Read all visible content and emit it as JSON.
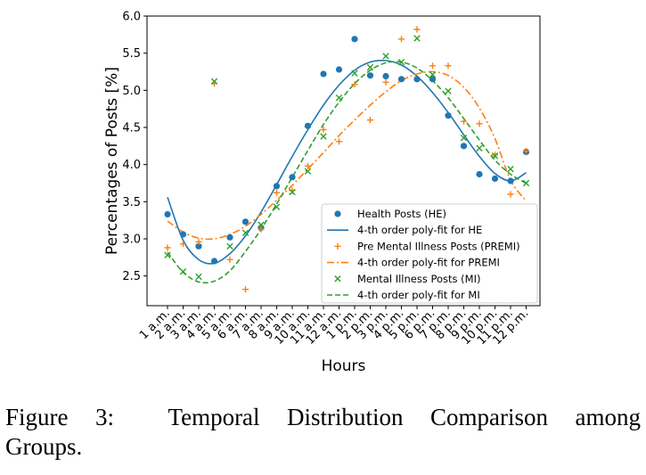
{
  "chart_data": {
    "type": "scatter",
    "xlabel": "Hours",
    "ylabel": "Percentages of Posts [%]",
    "categories": [
      "1 a.m.",
      "2 a.m.",
      "3 a.m.",
      "4 a.m.",
      "5 a.m.",
      "6 a.m.",
      "7 a.m.",
      "8 a.m.",
      "9 a.m.",
      "10 a.m.",
      "11 a.m.",
      "12 a.m.",
      "1 p.m.",
      "2 p.m.",
      "3 p.m.",
      "4 p.m.",
      "5 p.m.",
      "6 p.m.",
      "7 p.m.",
      "8 p.m.",
      "9 p.m.",
      "10 p.m.",
      "11 p.m.",
      "12 p.m."
    ],
    "yticks": [
      "2.5",
      "3.0",
      "3.5",
      "4.0",
      "4.5",
      "5.0",
      "5.5",
      "6.0"
    ],
    "ylim": [
      2.1,
      6.0
    ],
    "grid": false,
    "legend_position": "lower-right",
    "series": [
      {
        "name": "Health Posts (HE)",
        "kind": "scatter",
        "marker": "circle",
        "color": "#1f77b4",
        "values": [
          3.33,
          3.06,
          2.9,
          2.7,
          3.02,
          3.23,
          3.15,
          3.71,
          3.83,
          4.52,
          5.22,
          5.28,
          5.69,
          5.2,
          5.19,
          5.15,
          5.15,
          5.15,
          4.66,
          4.25,
          3.87,
          3.81,
          3.78,
          4.17
        ]
      },
      {
        "name": "4-th order poly-fit for HE",
        "kind": "line",
        "dash": "solid",
        "color": "#1f77b4",
        "values": [
          3.56,
          2.98,
          2.72,
          2.67,
          2.8,
          3.04,
          3.36,
          3.73,
          4.11,
          4.47,
          4.8,
          5.07,
          5.27,
          5.38,
          5.4,
          5.34,
          5.19,
          4.97,
          4.7,
          4.4,
          4.11,
          3.88,
          3.78,
          3.89
        ]
      },
      {
        "name": "Pre Mental Illness Posts (PREMI)",
        "kind": "scatter",
        "marker": "plus",
        "color": "#ff7f0e",
        "values": [
          2.88,
          2.93,
          2.96,
          5.09,
          2.72,
          2.32,
          3.13,
          3.62,
          3.65,
          3.98,
          4.47,
          4.31,
          5.08,
          4.6,
          5.11,
          5.69,
          5.82,
          5.33,
          5.33,
          4.58,
          4.55,
          4.13,
          3.6,
          4.18
        ]
      },
      {
        "name": "4-th order poly-fit for PREMI",
        "kind": "line",
        "dash": "dashdot",
        "color": "#ff7f0e",
        "values": [
          3.24,
          3.09,
          3.01,
          3.0,
          3.06,
          3.17,
          3.33,
          3.52,
          3.72,
          3.94,
          4.16,
          4.39,
          4.6,
          4.8,
          4.98,
          5.13,
          5.22,
          5.25,
          5.2,
          5.04,
          4.76,
          4.35,
          3.79,
          3.51
        ]
      },
      {
        "name": "Mental Illness Posts (MI)",
        "kind": "scatter",
        "marker": "x",
        "color": "#2ca02c",
        "values": [
          2.78,
          2.56,
          2.49,
          5.12,
          2.9,
          3.08,
          3.19,
          3.43,
          3.63,
          3.91,
          4.38,
          4.9,
          5.23,
          5.31,
          5.46,
          5.38,
          5.7,
          5.21,
          4.99,
          4.36,
          4.22,
          4.12,
          3.94,
          3.75
        ]
      },
      {
        "name": "4-th order poly-fit for MI",
        "kind": "line",
        "dash": "dashed",
        "color": "#2ca02c",
        "values": [
          2.82,
          2.55,
          2.42,
          2.43,
          2.57,
          2.83,
          3.13,
          3.47,
          3.83,
          4.19,
          4.54,
          4.84,
          5.09,
          5.27,
          5.37,
          5.38,
          5.3,
          5.13,
          4.9,
          4.62,
          4.33,
          4.06,
          3.87,
          3.75
        ]
      }
    ]
  },
  "caption": {
    "line1": "Figure 3:  Temporal Distribution Comparison among",
    "line2": "Groups."
  }
}
